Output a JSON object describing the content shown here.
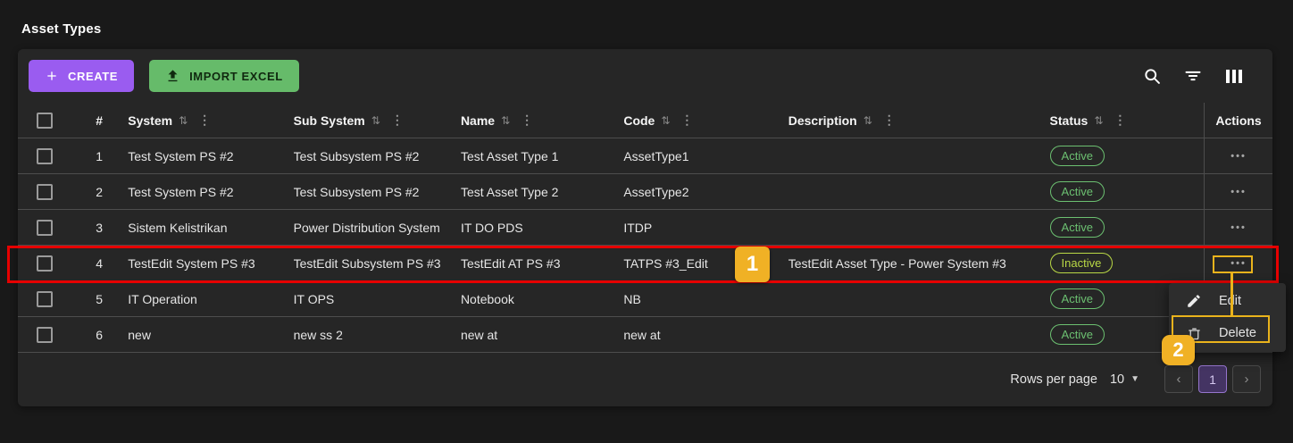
{
  "page": {
    "title": "Asset Types"
  },
  "toolbar": {
    "create_label": "CREATE",
    "import_label": "IMPORT EXCEL",
    "icons": [
      "search-icon",
      "filter-icon",
      "columns-icon"
    ]
  },
  "table": {
    "columns": [
      {
        "key": "index",
        "label": "#",
        "sortable": false
      },
      {
        "key": "system",
        "label": "System",
        "sortable": true
      },
      {
        "key": "subsystem",
        "label": "Sub System",
        "sortable": true
      },
      {
        "key": "name",
        "label": "Name",
        "sortable": true
      },
      {
        "key": "code",
        "label": "Code",
        "sortable": true
      },
      {
        "key": "description",
        "label": "Description",
        "sortable": true
      },
      {
        "key": "status",
        "label": "Status",
        "sortable": true
      },
      {
        "key": "actions",
        "label": "Actions",
        "sortable": false
      }
    ],
    "rows": [
      {
        "index": "1",
        "system": "Test System PS #2",
        "subsystem": "Test Subsystem PS #2",
        "name": "Test Asset Type 1",
        "code": "AssetType1",
        "description": "",
        "status": "Active",
        "highlighted": false
      },
      {
        "index": "2",
        "system": "Test System PS #2",
        "subsystem": "Test Subsystem PS #2",
        "name": "Test Asset Type 2",
        "code": "AssetType2",
        "description": "",
        "status": "Active",
        "highlighted": false
      },
      {
        "index": "3",
        "system": "Sistem Kelistrikan",
        "subsystem": "Power Distribution System",
        "name": "IT DO PDS",
        "code": "ITDP",
        "description": "",
        "status": "Active",
        "highlighted": false
      },
      {
        "index": "4",
        "system": "TestEdit System PS #3",
        "subsystem": "TestEdit Subsystem PS #3",
        "name": "TestEdit AT PS #3",
        "code": "TATPS #3_Edit",
        "description": "TestEdit Asset Type - Power System #3",
        "status": "Inactive",
        "highlighted": true
      },
      {
        "index": "5",
        "system": "IT Operation",
        "subsystem": "IT OPS",
        "name": "Notebook",
        "code": "NB",
        "description": "",
        "status": "Active",
        "highlighted": false
      },
      {
        "index": "6",
        "system": "new",
        "subsystem": "new ss 2",
        "name": "new at",
        "code": "new at",
        "description": "",
        "status": "Active",
        "highlighted": false
      }
    ],
    "actions_ellipsis": "•••"
  },
  "context_menu": {
    "items": [
      {
        "label": "Edit",
        "icon": "pencil-icon",
        "highlighted": false
      },
      {
        "label": "Delete",
        "icon": "trash-icon",
        "highlighted": true
      }
    ]
  },
  "pagination": {
    "rows_per_page_label": "Rows per page",
    "rows_per_page_value": "10",
    "current_page": "1",
    "prev_icon": "‹",
    "next_icon": "›"
  },
  "annotations": {
    "step_1": "1",
    "step_2": "2"
  },
  "colors": {
    "accent_purple": "#9a5cf0",
    "accent_green": "#66bb6a",
    "status_active": "#6cc071",
    "status_inactive": "#b9d845",
    "annotation_red": "#e60000",
    "annotation_amber": "#f0b125",
    "page_bg": "#191919",
    "card_bg": "#262626"
  }
}
